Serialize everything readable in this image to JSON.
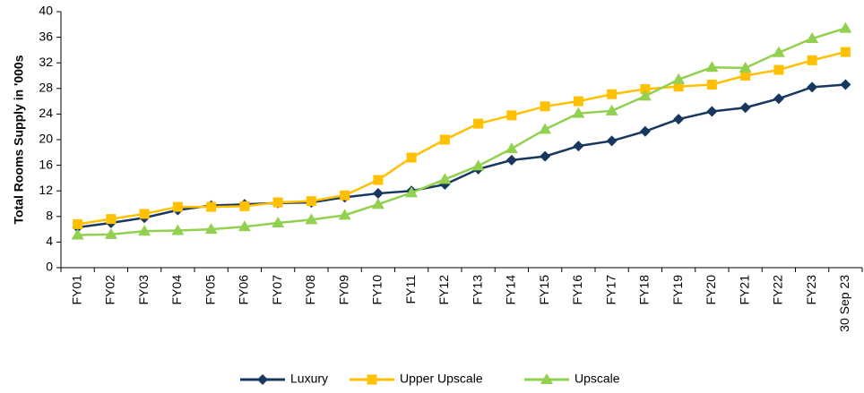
{
  "chart_data": {
    "type": "line",
    "y_label": "Total Rooms Supply in '000s",
    "categories": [
      "FY01",
      "FY02",
      "FY03",
      "FY04",
      "FY05",
      "FY06",
      "FY07",
      "FY08",
      "FY09",
      "FY10",
      "FY11",
      "FY12",
      "FY13",
      "FY14",
      "FY15",
      "FY16",
      "FY17",
      "FY18",
      "FY19",
      "FY20",
      "FY21",
      "FY22",
      "FY23",
      "30 Sep 23"
    ],
    "series": [
      {
        "name": "Luxury",
        "color": "#17375e",
        "marker": "diamond",
        "values": [
          6.3,
          7.0,
          7.8,
          9.0,
          9.7,
          9.9,
          10.1,
          10.2,
          11.0,
          11.6,
          12.0,
          13.0,
          15.4,
          16.8,
          17.4,
          19.0,
          19.8,
          21.3,
          23.2,
          24.4,
          25.0,
          26.4,
          28.2,
          28.6
        ]
      },
      {
        "name": "Upper Upscale",
        "color": "#ffc000",
        "marker": "square",
        "values": [
          6.8,
          7.6,
          8.4,
          9.5,
          9.5,
          9.6,
          10.2,
          10.4,
          11.3,
          13.7,
          17.2,
          20.0,
          22.5,
          23.8,
          25.2,
          26.0,
          27.1,
          27.9,
          28.3,
          28.6,
          30.0,
          30.9,
          32.4,
          33.7
        ]
      },
      {
        "name": "Upscale",
        "color": "#92d050",
        "marker": "triangle",
        "values": [
          5.1,
          5.2,
          5.7,
          5.8,
          6.0,
          6.4,
          7.0,
          7.5,
          8.2,
          9.9,
          11.7,
          13.8,
          15.9,
          18.6,
          21.6,
          24.1,
          24.5,
          26.8,
          29.4,
          31.3,
          31.2,
          33.6,
          35.8,
          37.4
        ]
      }
    ],
    "ylim": [
      0,
      40
    ],
    "yticks": [
      0,
      4,
      8,
      12,
      16,
      20,
      24,
      28,
      32,
      36,
      40
    ],
    "legend": "bottom"
  }
}
